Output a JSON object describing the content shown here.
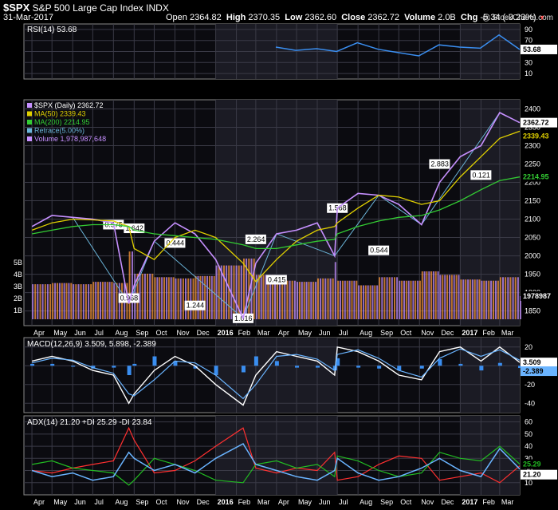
{
  "header": {
    "symbol": "$SPX",
    "name": "S&P 500 Large Cap Index",
    "exchange": "INDX",
    "date": "31-Mar-2017",
    "open_label": "Open",
    "open": "2364.82",
    "high_label": "High",
    "high": "2370.35",
    "low_label": "Low",
    "low": "2362.60",
    "close_label": "Close",
    "close": "2362.72",
    "volume_label": "Volume",
    "volume": "2.0B",
    "chg_label": "Chg",
    "chg": "-5.34 (-0.23%)",
    "credit": "@ StockCharts.com"
  },
  "colors": {
    "background": "#000000",
    "grid": "#3a3a46",
    "shade": "#1b1b24",
    "price_up": "#c690ff",
    "price_down": "#ff9a3a",
    "ma50": "#e0d000",
    "ma200": "#33cc33",
    "retrace": "#6ab4d8",
    "rsi": "#3a8ef0",
    "macd": "#ffffff",
    "signal": "#6ab4ff",
    "hist": "#3a8ef0",
    "adx": "#6ab4ff",
    "pdi": "#22bb22",
    "mdi": "#ff3030",
    "tag_current": "#ffffff"
  },
  "legend": {
    "price": "$SPX (Daily) 2362.72",
    "ma50": "MA(50) 2339.43",
    "ma200": "MA(200) 2214.95",
    "retrace": "Retrace(5.00%)",
    "volume": "Volume 1,978,987,648"
  },
  "chart_data": [
    {
      "type": "line",
      "title": "RSI(14) 53.68",
      "ylim": [
        0,
        100
      ],
      "yticks": [
        "90",
        "70",
        "50",
        "30",
        "10"
      ],
      "current_label": "53.68",
      "series": [
        {
          "name": "RSI(14)",
          "x": [
            "2016-03-31",
            "2016-04-30",
            "2016-05-31",
            "2016-06-30",
            "2016-07-31",
            "2016-08-31",
            "2016-09-30",
            "2016-10-31",
            "2016-11-30",
            "2016-12-31",
            "2017-01-31",
            "2017-02-28",
            "2017-03-31"
          ],
          "values": [
            58,
            52,
            55,
            50,
            66,
            54,
            48,
            42,
            62,
            58,
            56,
            80,
            53.68
          ]
        }
      ]
    },
    {
      "type": "line",
      "title": "$SPX (Daily)",
      "ylim": [
        1800,
        2400
      ],
      "yticks": [
        "2400",
        "2350",
        "2300",
        "2250",
        "2200",
        "2150",
        "2100",
        "2050",
        "2000",
        "1950",
        "1900",
        "1850"
      ],
      "volume_ticks": [
        "5B",
        "4B",
        "3B",
        "2B",
        "1B"
      ],
      "current_labels": [
        "2362.72",
        "2339.43",
        "2214.95",
        "1978987"
      ],
      "xticks": [
        "Apr",
        "May",
        "Jun",
        "Jul",
        "Aug",
        "Sep",
        "Oct",
        "Nov",
        "Dec",
        "2016",
        "Feb",
        "Mar",
        "Apr",
        "May",
        "Jun",
        "Jul",
        "Aug",
        "Sep",
        "Oct",
        "Nov",
        "Dec",
        "2017",
        "Feb",
        "Mar"
      ],
      "x": [
        "2015-04-01",
        "2015-05-01",
        "2015-06-01",
        "2015-07-01",
        "2015-08-01",
        "2015-08-24",
        "2015-09-01",
        "2015-10-01",
        "2015-11-01",
        "2015-12-01",
        "2016-01-01",
        "2016-02-11",
        "2016-03-01",
        "2016-04-01",
        "2016-05-01",
        "2016-06-01",
        "2016-06-27",
        "2016-07-01",
        "2016-08-01",
        "2016-09-01",
        "2016-10-01",
        "2016-11-04",
        "2016-12-01",
        "2017-01-01",
        "2017-02-01",
        "2017-03-01",
        "2017-03-31"
      ],
      "series": [
        {
          "name": "$SPX (Daily)",
          "values": [
            2080,
            2110,
            2105,
            2100,
            2090,
            1870,
            1920,
            2040,
            2090,
            2060,
            1990,
            1830,
            1980,
            2060,
            2070,
            2090,
            2000,
            2130,
            2170,
            2165,
            2140,
            2085,
            2200,
            2270,
            2300,
            2390,
            2362.72
          ]
        },
        {
          "name": "MA(50)",
          "values": [
            2070,
            2090,
            2100,
            2098,
            2095,
            2080,
            2020,
            1990,
            2050,
            2070,
            2050,
            1980,
            1930,
            1990,
            2040,
            2070,
            2080,
            2090,
            2130,
            2165,
            2160,
            2140,
            2150,
            2215,
            2270,
            2320,
            2339.43
          ]
        },
        {
          "name": "MA(200)",
          "values": [
            2060,
            2070,
            2080,
            2085,
            2085,
            2080,
            2070,
            2060,
            2055,
            2050,
            2045,
            2030,
            2020,
            2020,
            2030,
            2040,
            2045,
            2060,
            2080,
            2095,
            2105,
            2110,
            2125,
            2150,
            2180,
            2205,
            2214.95
          ]
        },
        {
          "name": "Volume",
          "values": [
            3.0,
            3.1,
            3.0,
            3.2,
            3.1,
            5.8,
            3.9,
            3.6,
            3.5,
            3.7,
            4.6,
            5.2,
            3.8,
            3.3,
            3.2,
            3.5,
            4.9,
            3.3,
            2.9,
            3.6,
            3.3,
            4.1,
            3.8,
            3.4,
            3.3,
            3.6,
            1.98
          ]
        }
      ],
      "retrace_labels": [
        "0.575",
        "1.642",
        "0.968",
        "0.444",
        "1.244",
        "1.016",
        "2.264",
        "0.415",
        "1.568",
        "0.544",
        "2.883",
        "0.121"
      ]
    },
    {
      "type": "line",
      "title": "MACD(12,26,9) 3.509, 5.898, -2.389",
      "ylim": [
        -50,
        30
      ],
      "yticks": [
        "20",
        "0",
        "-20",
        "-40"
      ],
      "current_labels": [
        "3.509",
        "-2.389"
      ],
      "series": [
        {
          "name": "MACD",
          "values": [
            5,
            10,
            5,
            -5,
            -10,
            -40,
            -30,
            -5,
            10,
            0,
            -20,
            -42,
            -10,
            15,
            10,
            5,
            -10,
            20,
            15,
            5,
            -10,
            -15,
            15,
            20,
            5,
            20,
            3.509
          ]
        },
        {
          "name": "Signal",
          "values": [
            3,
            8,
            6,
            -2,
            -8,
            -30,
            -32,
            -15,
            5,
            3,
            -10,
            -35,
            -20,
            10,
            12,
            7,
            -5,
            12,
            17,
            8,
            -5,
            -12,
            8,
            18,
            10,
            17,
            5.898
          ]
        },
        {
          "name": "Histogram",
          "values": [
            2,
            2,
            -1,
            -3,
            -2,
            -10,
            2,
            10,
            5,
            -3,
            -10,
            -7,
            10,
            5,
            -2,
            -2,
            -5,
            8,
            -2,
            -3,
            -5,
            -3,
            7,
            2,
            -5,
            3,
            -2.389
          ]
        }
      ]
    },
    {
      "type": "line",
      "title": "ADX(14) 21.20 +DI 25.29 -DI 23.84",
      "ylim": [
        0,
        65
      ],
      "yticks": [
        "60",
        "50",
        "40",
        "30",
        "20",
        "10"
      ],
      "current_labels": [
        "25.29",
        "21.20"
      ],
      "series": [
        {
          "name": "ADX(14)",
          "values": [
            20,
            15,
            18,
            12,
            15,
            35,
            30,
            20,
            25,
            18,
            30,
            42,
            25,
            20,
            15,
            12,
            20,
            30,
            18,
            12,
            15,
            22,
            30,
            20,
            15,
            38,
            21.2
          ]
        },
        {
          "name": "+DI",
          "values": [
            25,
            28,
            22,
            20,
            18,
            8,
            12,
            30,
            25,
            20,
            12,
            10,
            25,
            28,
            22,
            25,
            15,
            32,
            28,
            20,
            15,
            18,
            35,
            30,
            28,
            40,
            25.29
          ]
        },
        {
          "name": "-DI",
          "values": [
            20,
            18,
            22,
            25,
            28,
            55,
            45,
            18,
            20,
            28,
            40,
            55,
            22,
            18,
            22,
            20,
            35,
            12,
            15,
            25,
            32,
            30,
            12,
            15,
            18,
            10,
            23.84
          ]
        }
      ],
      "xticks": [
        "Apr",
        "May",
        "Jun",
        "Jul",
        "Aug",
        "Sep",
        "Oct",
        "Nov",
        "Dec",
        "2016",
        "Feb",
        "Mar",
        "Apr",
        "May",
        "Jun",
        "Jul",
        "Aug",
        "Sep",
        "Oct",
        "Nov",
        "Dec",
        "2017",
        "Feb",
        "Mar"
      ]
    }
  ]
}
